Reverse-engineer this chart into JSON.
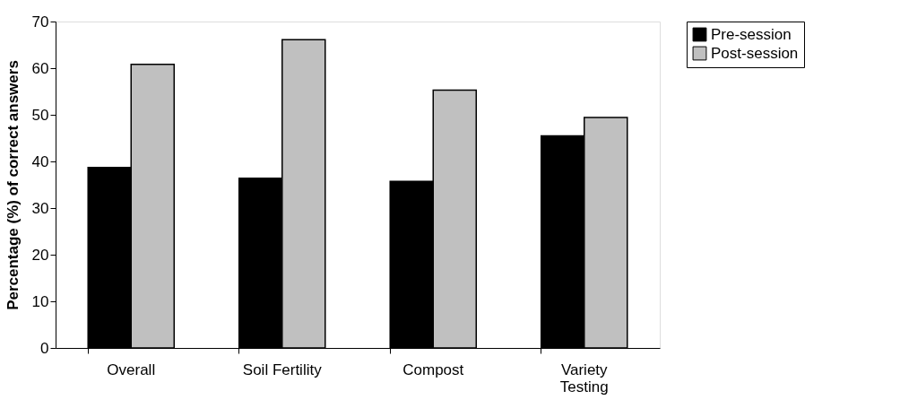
{
  "chart_data": {
    "type": "bar",
    "ylabel": "Percentage (%) of correct answers",
    "categories": [
      "Overall",
      "Soil Fertility",
      "Compost",
      "Variety Testing"
    ],
    "series": [
      {
        "name": "Pre-session",
        "color": "#000000",
        "values": [
          38.7,
          36.4,
          35.7,
          45.5
        ]
      },
      {
        "name": "Post-session",
        "color": "#c0c0c0",
        "values": [
          60.8,
          66.1,
          55.3,
          49.4
        ]
      }
    ],
    "ylim": [
      0,
      70
    ],
    "yticks": [
      0,
      10,
      20,
      30,
      40,
      50,
      60,
      70
    ],
    "grid": false,
    "legend": "right"
  }
}
